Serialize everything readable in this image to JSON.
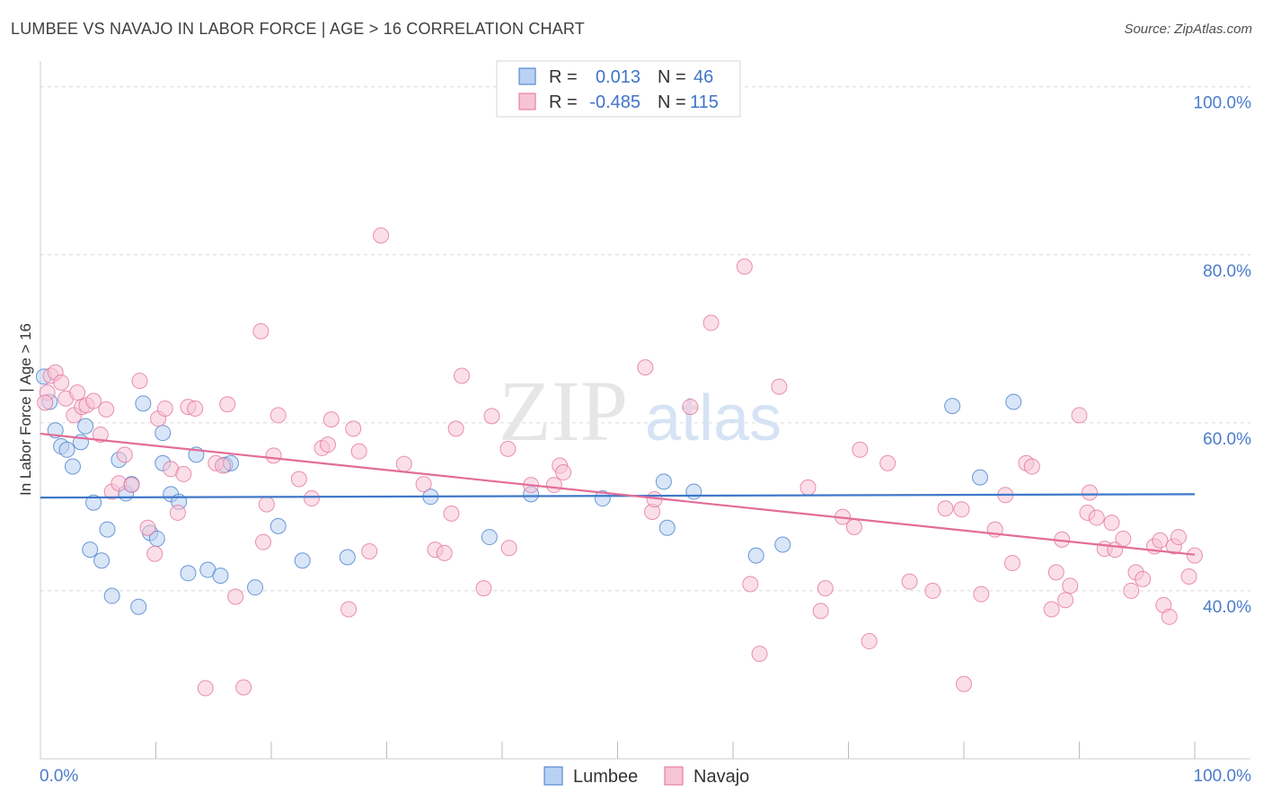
{
  "title": "LUMBEE VS NAVAJO IN LABOR FORCE | AGE > 16 CORRELATION CHART",
  "source": "Source: ZipAtlas.com",
  "watermark": {
    "zip": "ZIP",
    "atlas": "atlas"
  },
  "colors": {
    "lumbee": "#3f78c9",
    "lumbee_fill": "#b9d1f3",
    "navajo": "#e36d98",
    "navajo_fill": "#f7c4d5",
    "tick": "#4a7cc9",
    "grid": "#d9d9d9"
  },
  "legend": {
    "rows": [
      {
        "r_label": "R =",
        "r_value": "0.013",
        "n_label": "N =",
        "n_value": "46"
      },
      {
        "r_label": "R =",
        "r_value": "-0.485",
        "n_label": "N =",
        "n_value": "115"
      }
    ]
  },
  "chart_data": {
    "type": "scatter",
    "title": "LUMBEE VS NAVAJO IN LABOR FORCE | AGE > 16 CORRELATION CHART",
    "ylabel": "In Labor Force | Age > 16",
    "xlabel": "",
    "x_tick_labels": [
      "0.0%",
      "100.0%"
    ],
    "y_tick_labels": [
      "40.0%",
      "60.0%",
      "80.0%",
      "100.0%"
    ],
    "xlim": [
      0,
      100
    ],
    "ylim": [
      20,
      102
    ],
    "grid": true,
    "legend_position": "top-center",
    "series": [
      {
        "name": "Lumbee",
        "r": 0.013,
        "n": 46,
        "trend": [
          [
            0,
            51.1
          ],
          [
            100,
            51.5
          ]
        ],
        "points": [
          [
            0.3,
            65.5
          ],
          [
            0.8,
            62.5
          ],
          [
            1.3,
            59.1
          ],
          [
            1.8,
            57.2
          ],
          [
            2.3,
            56.8
          ],
          [
            2.8,
            54.8
          ],
          [
            3.5,
            57.7
          ],
          [
            3.9,
            59.6
          ],
          [
            4.6,
            50.5
          ],
          [
            4.3,
            44.9
          ],
          [
            5.3,
            43.6
          ],
          [
            5.8,
            47.3
          ],
          [
            6.2,
            39.4
          ],
          [
            6.8,
            55.6
          ],
          [
            7.4,
            51.6
          ],
          [
            7.9,
            52.7
          ],
          [
            8.5,
            38.1
          ],
          [
            8.9,
            62.3
          ],
          [
            9.5,
            46.9
          ],
          [
            10.1,
            46.2
          ],
          [
            10.6,
            55.2
          ],
          [
            10.6,
            58.8
          ],
          [
            11.3,
            51.5
          ],
          [
            12.0,
            50.6
          ],
          [
            12.8,
            42.1
          ],
          [
            13.5,
            56.2
          ],
          [
            14.5,
            42.5
          ],
          [
            15.6,
            41.8
          ],
          [
            16.0,
            55.0
          ],
          [
            16.5,
            55.2
          ],
          [
            18.6,
            40.4
          ],
          [
            20.6,
            47.7
          ],
          [
            22.7,
            43.6
          ],
          [
            26.6,
            44.0
          ],
          [
            33.8,
            51.2
          ],
          [
            38.9,
            46.4
          ],
          [
            42.5,
            51.5
          ],
          [
            48.7,
            51.0
          ],
          [
            54.0,
            53.0
          ],
          [
            54.3,
            47.5
          ],
          [
            56.6,
            51.8
          ],
          [
            62.0,
            44.2
          ],
          [
            64.3,
            45.5
          ],
          [
            79.0,
            62.0
          ],
          [
            81.4,
            53.5
          ],
          [
            84.3,
            62.5
          ]
        ]
      },
      {
        "name": "Navajo",
        "r": -0.485,
        "n": 115,
        "trend": [
          [
            0,
            58.7
          ],
          [
            100,
            44.3
          ]
        ],
        "points": [
          [
            0.6,
            63.6
          ],
          [
            0.9,
            65.6
          ],
          [
            1.3,
            66.0
          ],
          [
            1.8,
            64.8
          ],
          [
            2.2,
            62.9
          ],
          [
            2.9,
            60.9
          ],
          [
            3.2,
            63.6
          ],
          [
            3.6,
            61.9
          ],
          [
            4.0,
            62.1
          ],
          [
            4.6,
            62.6
          ],
          [
            5.2,
            58.6
          ],
          [
            5.7,
            61.6
          ],
          [
            6.2,
            51.8
          ],
          [
            6.8,
            52.8
          ],
          [
            7.3,
            56.2
          ],
          [
            7.9,
            52.6
          ],
          [
            8.6,
            65.0
          ],
          [
            9.3,
            47.5
          ],
          [
            9.9,
            44.4
          ],
          [
            10.2,
            60.5
          ],
          [
            10.8,
            61.7
          ],
          [
            11.3,
            54.5
          ],
          [
            11.9,
            49.3
          ],
          [
            12.4,
            53.9
          ],
          [
            12.8,
            61.9
          ],
          [
            13.4,
            61.7
          ],
          [
            14.3,
            28.4
          ],
          [
            15.2,
            55.2
          ],
          [
            15.8,
            54.9
          ],
          [
            16.2,
            62.2
          ],
          [
            16.9,
            39.3
          ],
          [
            17.6,
            28.5
          ],
          [
            19.1,
            70.9
          ],
          [
            19.3,
            45.8
          ],
          [
            19.6,
            50.3
          ],
          [
            20.2,
            56.1
          ],
          [
            20.6,
            60.9
          ],
          [
            22.4,
            53.3
          ],
          [
            23.5,
            51.0
          ],
          [
            24.4,
            57.0
          ],
          [
            24.9,
            57.4
          ],
          [
            25.2,
            60.4
          ],
          [
            26.7,
            37.8
          ],
          [
            27.1,
            59.3
          ],
          [
            27.6,
            56.6
          ],
          [
            28.5,
            44.7
          ],
          [
            29.5,
            82.3
          ],
          [
            31.5,
            55.1
          ],
          [
            33.2,
            52.7
          ],
          [
            34.2,
            44.9
          ],
          [
            35.0,
            44.5
          ],
          [
            35.6,
            49.2
          ],
          [
            36.0,
            59.3
          ],
          [
            36.5,
            65.6
          ],
          [
            38.4,
            40.3
          ],
          [
            39.1,
            60.8
          ],
          [
            40.5,
            56.9
          ],
          [
            40.6,
            45.1
          ],
          [
            42.5,
            52.6
          ],
          [
            44.5,
            52.6
          ],
          [
            45.0,
            54.9
          ],
          [
            45.3,
            54.1
          ],
          [
            52.4,
            66.6
          ],
          [
            53.0,
            49.4
          ],
          [
            53.2,
            50.9
          ],
          [
            56.3,
            61.9
          ],
          [
            58.1,
            71.9
          ],
          [
            61.0,
            78.6
          ],
          [
            61.5,
            40.8
          ],
          [
            62.3,
            32.5
          ],
          [
            64.0,
            64.3
          ],
          [
            66.5,
            52.3
          ],
          [
            67.6,
            37.6
          ],
          [
            68.0,
            40.3
          ],
          [
            69.5,
            48.8
          ],
          [
            70.5,
            47.6
          ],
          [
            71.0,
            56.8
          ],
          [
            71.8,
            34.0
          ],
          [
            73.4,
            55.2
          ],
          [
            75.3,
            41.1
          ],
          [
            77.3,
            40.0
          ],
          [
            78.4,
            49.8
          ],
          [
            79.8,
            49.7
          ],
          [
            80.0,
            28.9
          ],
          [
            81.5,
            39.6
          ],
          [
            82.7,
            47.3
          ],
          [
            83.6,
            51.4
          ],
          [
            84.2,
            43.3
          ],
          [
            85.4,
            55.2
          ],
          [
            85.9,
            54.8
          ],
          [
            87.6,
            37.8
          ],
          [
            88.0,
            42.2
          ],
          [
            88.5,
            46.1
          ],
          [
            88.8,
            38.9
          ],
          [
            89.2,
            40.6
          ],
          [
            90.0,
            60.9
          ],
          [
            90.7,
            49.3
          ],
          [
            90.9,
            51.7
          ],
          [
            91.5,
            48.7
          ],
          [
            92.2,
            45.0
          ],
          [
            92.8,
            48.1
          ],
          [
            93.1,
            44.9
          ],
          [
            93.8,
            46.2
          ],
          [
            94.5,
            40.0
          ],
          [
            94.9,
            42.2
          ],
          [
            95.5,
            41.4
          ],
          [
            96.5,
            45.3
          ],
          [
            97.0,
            46.0
          ],
          [
            97.3,
            38.3
          ],
          [
            97.8,
            36.9
          ],
          [
            98.2,
            45.3
          ],
          [
            98.6,
            46.4
          ],
          [
            99.5,
            41.7
          ],
          [
            100.0,
            44.2
          ],
          [
            0.4,
            62.4
          ]
        ]
      }
    ]
  }
}
